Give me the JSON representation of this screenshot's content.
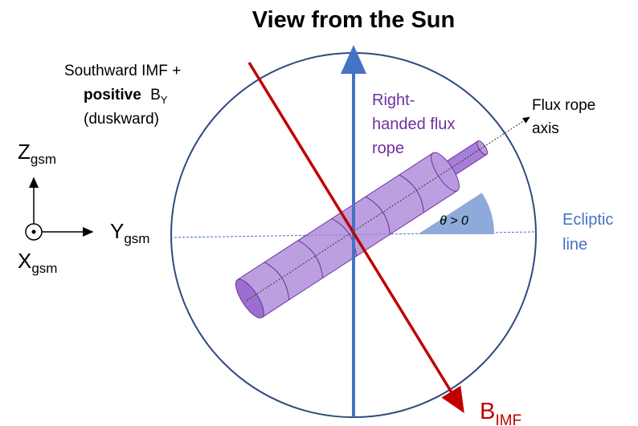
{
  "title": "View from the Sun",
  "imf_note": {
    "line1": "Southward IMF +",
    "bold": "positive",
    "b": "B",
    "sub": "Y",
    "line3": "(duskward)"
  },
  "axes": {
    "z": {
      "main": "Z",
      "sub": "gsm"
    },
    "y": {
      "main": "Y",
      "sub": "gsm"
    },
    "x": {
      "main": "X",
      "sub": "gsm"
    }
  },
  "flux_rope": {
    "lines": [
      "Right-",
      "handed flux",
      "rope"
    ]
  },
  "axis_label": {
    "lines": [
      "Flux rope",
      "axis"
    ]
  },
  "angle": "θ > 0",
  "ecliptic": {
    "lines": [
      "Ecliptic",
      "line"
    ]
  },
  "b_imf": {
    "main": "B",
    "sub": "IMF"
  }
}
